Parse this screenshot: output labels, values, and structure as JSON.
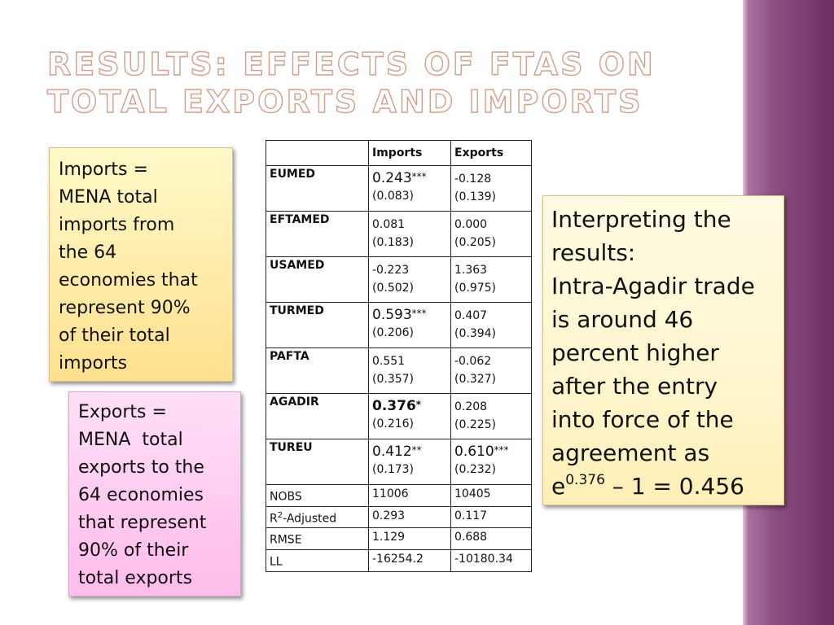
{
  "title": {
    "line1": "Results: Effects of FTAs on",
    "line2": "total exports and imports"
  },
  "imports_note": {
    "lines": [
      "Imports =",
      "MENA total",
      "imports from",
      "the 64",
      "economies that",
      "represent 90%",
      "of their total",
      "imports"
    ]
  },
  "exports_note": {
    "lines": [
      "Exports =",
      "MENA  total",
      "exports to the",
      "64 economies",
      "that represent",
      "90% of their",
      "total exports"
    ]
  },
  "interpretation": {
    "lines": [
      "Interpreting the",
      "results:",
      "Intra-Agadir trade",
      "is around 46",
      "percent higher",
      "after the entry",
      "into force of the",
      "agreement as"
    ],
    "formula_base": "e",
    "formula_exponent": "0.376",
    "formula_rest": " – 1 = 0.456"
  },
  "table": {
    "headers": [
      "",
      "Imports",
      "Exports"
    ],
    "rows": [
      {
        "name": "EUMED",
        "imp_coef": "0.243",
        "imp_stars": "***",
        "imp_se": "(0.083)",
        "exp_coef": "-0.128",
        "exp_stars": "",
        "exp_se": "(0.139)"
      },
      {
        "name": "EFTAMED",
        "imp_coef": "0.081",
        "imp_stars": "",
        "imp_se": "(0.183)",
        "exp_coef": "0.000",
        "exp_stars": "",
        "exp_se": "(0.205)"
      },
      {
        "name": "USAMED",
        "imp_coef": "-0.223",
        "imp_stars": "",
        "imp_se": "(0.502)",
        "exp_coef": "1.363",
        "exp_stars": "",
        "exp_se": "(0.975)"
      },
      {
        "name": "TURMED",
        "imp_coef": "0.593",
        "imp_stars": "***",
        "imp_se": "(0.206)",
        "exp_coef": "0.407",
        "exp_stars": "",
        "exp_se": "(0.394)"
      },
      {
        "name": "PAFTA",
        "imp_coef": "0.551",
        "imp_stars": "",
        "imp_se": "(0.357)",
        "exp_coef": "-0.062",
        "exp_stars": "",
        "exp_se": "(0.327)"
      },
      {
        "name": "AGADIR",
        "imp_coef": "0.376",
        "imp_stars": "*",
        "imp_se": "(0.216)",
        "exp_coef": "0.208",
        "exp_stars": "",
        "exp_se": "(0.225)"
      },
      {
        "name": "TUREU",
        "imp_coef": "0.412",
        "imp_stars": "**",
        "imp_se": "(0.173)",
        "exp_coef": "0.610",
        "exp_stars": "***",
        "exp_se": "(0.232)"
      }
    ],
    "stats": [
      {
        "name": "NOBS",
        "sup": "",
        "name_rest": "",
        "imports": "11006",
        "exports": "10405"
      },
      {
        "name": "R",
        "sup": "2",
        "name_rest": "-Adjusted",
        "imports": "0.293",
        "exports": "0.117"
      },
      {
        "name": "RMSE",
        "sup": "",
        "name_rest": "",
        "imports": "1.129",
        "exports": "0.688"
      },
      {
        "name": "LL",
        "sup": "",
        "name_rest": "",
        "imports": "-16254.2",
        "exports": "-10180.34"
      }
    ]
  }
}
